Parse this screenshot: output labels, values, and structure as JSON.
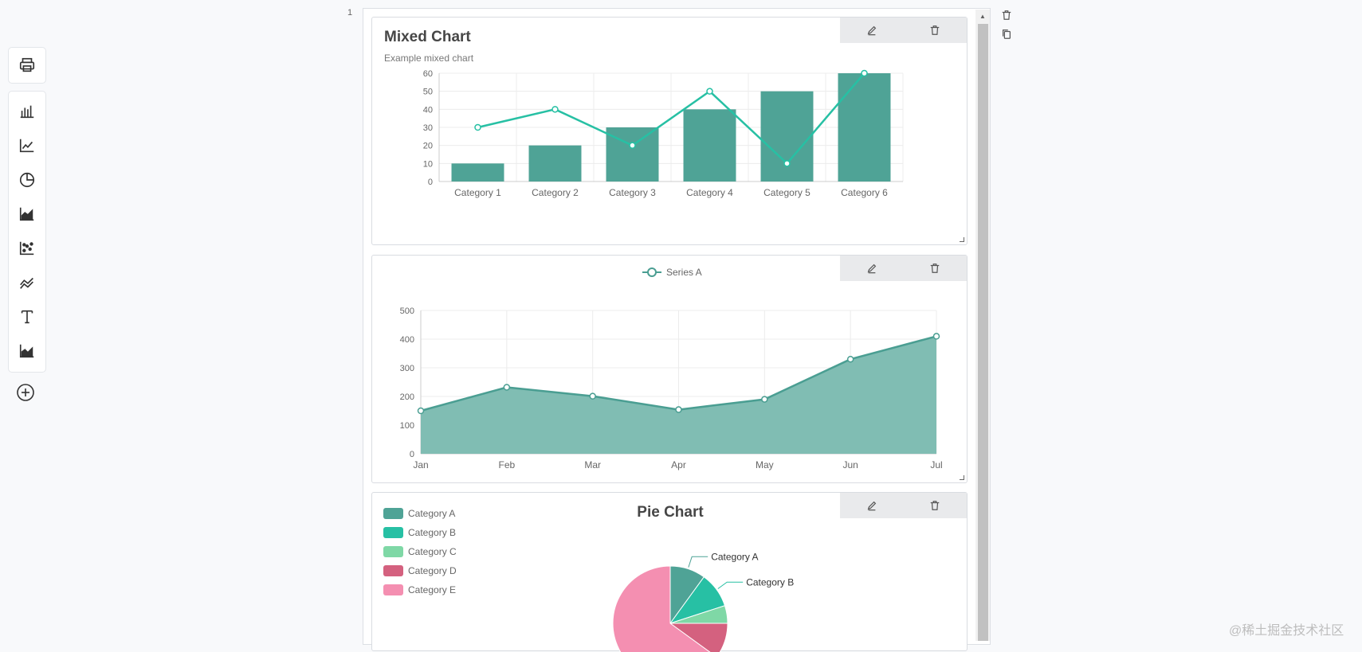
{
  "page": {
    "number": "1"
  },
  "toolbar": {
    "items": [
      {
        "name": "print-icon"
      },
      {
        "name": "bar-chart-icon"
      },
      {
        "name": "line-chart-icon"
      },
      {
        "name": "pie-chart-icon"
      },
      {
        "name": "area-chart-icon"
      },
      {
        "name": "scatter-chart-icon"
      },
      {
        "name": "wave-chart-icon"
      },
      {
        "name": "text-icon"
      },
      {
        "name": "area-chart-alt-icon"
      }
    ],
    "add_icon": "plus-circle-icon"
  },
  "side_actions": [
    "trash-icon",
    "copy-icon"
  ],
  "card_tools": [
    "edit-icon",
    "trash-icon"
  ],
  "mixed": {
    "title": "Mixed Chart",
    "subtitle": "Example mixed chart"
  },
  "area": {
    "legend": "Series A"
  },
  "pie": {
    "title": "Pie Chart"
  },
  "watermark": "@稀土掘金技术社区",
  "colors": {
    "bar": "#4fa396",
    "line": "#27c0a4",
    "area_fill": "#80bdb3",
    "area_line": "#4a9e92",
    "grid": "#ececec"
  },
  "chart_data": [
    {
      "type": "bar",
      "title": "Mixed Chart",
      "subtitle": "Example mixed chart",
      "categories": [
        "Category 1",
        "Category 2",
        "Category 3",
        "Category 4",
        "Category 5",
        "Category 6"
      ],
      "series": [
        {
          "type": "bar",
          "values": [
            10,
            20,
            30,
            40,
            50,
            60
          ]
        },
        {
          "type": "line",
          "values": [
            30,
            40,
            20,
            50,
            10,
            60
          ]
        }
      ],
      "ylim": [
        0,
        60
      ],
      "yticks": [
        0,
        10,
        20,
        30,
        40,
        50,
        60
      ],
      "grid": true
    },
    {
      "type": "area",
      "categories": [
        "Jan",
        "Feb",
        "Mar",
        "Apr",
        "May",
        "Jun",
        "Jul"
      ],
      "series": [
        {
          "name": "Series A",
          "values": [
            150,
            232,
            201,
            154,
            190,
            330,
            410
          ]
        }
      ],
      "ylim": [
        0,
        500
      ],
      "yticks": [
        0,
        100,
        200,
        300,
        400,
        500
      ],
      "legend": "top-center",
      "grid": true
    },
    {
      "type": "pie",
      "title": "Pie Chart",
      "legend": "top-left",
      "slices": [
        {
          "name": "Category A",
          "value": 10,
          "color": "#4fa396"
        },
        {
          "name": "Category B",
          "value": 10,
          "color": "#27c0a4"
        },
        {
          "name": "Category C",
          "value": 5,
          "color": "#7fd8a6"
        },
        {
          "name": "Category D",
          "value": 10,
          "color": "#d4617f"
        },
        {
          "name": "Category E",
          "value": 65,
          "color": "#f48fb1"
        }
      ],
      "visible_labels": [
        "Category A",
        "Category B"
      ]
    }
  ]
}
